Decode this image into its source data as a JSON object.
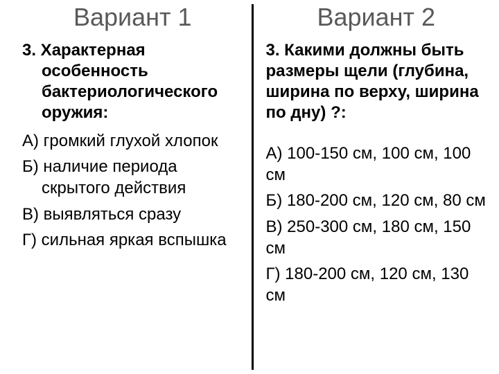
{
  "left": {
    "heading": "Вариант 1",
    "question": "3. Характерная особенность бактериологического оружия:",
    "answers": [
      "А) громкий глухой хлопок",
      "Б) наличие периода скрытого действия",
      "В) выявляться сразу",
      "Г) сильная яркая вспышка"
    ]
  },
  "right": {
    "heading": "Вариант 2",
    "question": "3. Какими должны быть размеры щели (глубина, ширина по верху, ширина по дну) ?:",
    "answers": [
      "А) 100-150 см, 100 см, 100 см",
      "Б) 180-200 см, 120 см, 80 см",
      "В) 250-300 см, 180 см, 150 см",
      "Г) 180-200 см, 120 см, 130 см"
    ]
  },
  "style": {
    "heading_color": "#595959",
    "heading_fontsize": 36,
    "body_fontsize": 24,
    "text_color": "#000000",
    "background_color": "#ffffff",
    "divider_color": "#000000",
    "divider_width": 3
  }
}
